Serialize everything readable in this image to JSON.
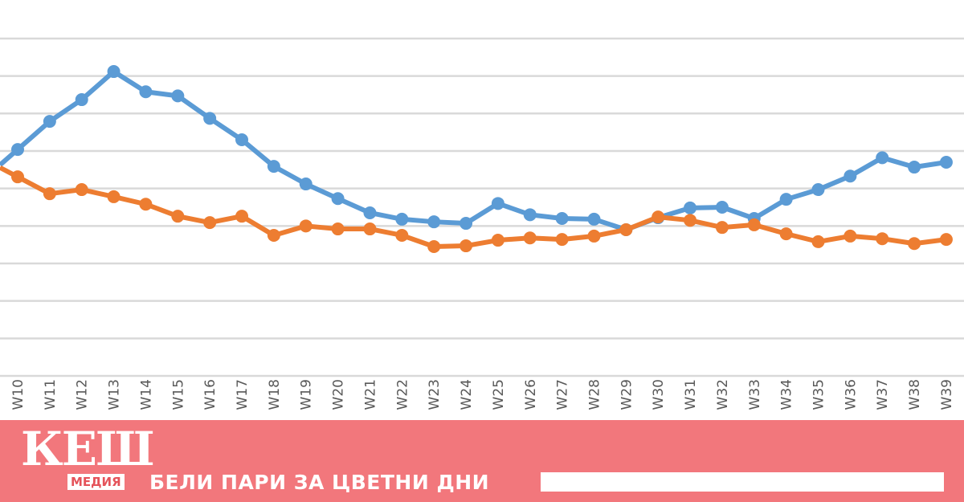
{
  "chart_data": {
    "type": "line",
    "title": "",
    "xlabel": "",
    "ylabel": "",
    "ylim": [
      0,
      9
    ],
    "grid": true,
    "categories": [
      "W10",
      "W11",
      "W12",
      "W13",
      "W14",
      "W15",
      "W16",
      "W17",
      "W18",
      "W19",
      "W20",
      "W21",
      "W22",
      "W23",
      "W24",
      "W25",
      "W26",
      "W27",
      "W28",
      "W29",
      "W30",
      "W31",
      "W32",
      "W33",
      "W34",
      "W35",
      "W36",
      "W37",
      "W38",
      "W39"
    ],
    "series": [
      {
        "color": "#5b9bd5",
        "values": [
          6.04,
          6.79,
          7.37,
          8.12,
          7.58,
          7.47,
          6.87,
          6.3,
          5.59,
          5.12,
          4.73,
          4.35,
          4.18,
          4.11,
          4.07,
          4.6,
          4.3,
          4.2,
          4.18,
          3.9,
          4.22,
          4.48,
          4.5,
          4.2,
          4.71,
          4.97,
          5.33,
          5.82,
          5.57,
          5.7
        ]
      },
      {
        "color": "#ed7d31",
        "values": [
          5.31,
          4.86,
          4.97,
          4.78,
          4.58,
          4.26,
          4.09,
          4.26,
          3.75,
          4.0,
          3.92,
          3.92,
          3.75,
          3.45,
          3.47,
          3.62,
          3.68,
          3.64,
          3.73,
          3.9,
          4.24,
          4.15,
          3.96,
          4.03,
          3.79,
          3.58,
          3.73,
          3.66,
          3.53,
          3.64
        ]
      }
    ]
  },
  "banner": {
    "logo_main": "КЕШ",
    "logo_sub": "МЕДИЯ",
    "slogan": "БЕЛИ ПАРИ ЗА ЦВЕТНИ ДНИ",
    "color": "#f0646a"
  }
}
